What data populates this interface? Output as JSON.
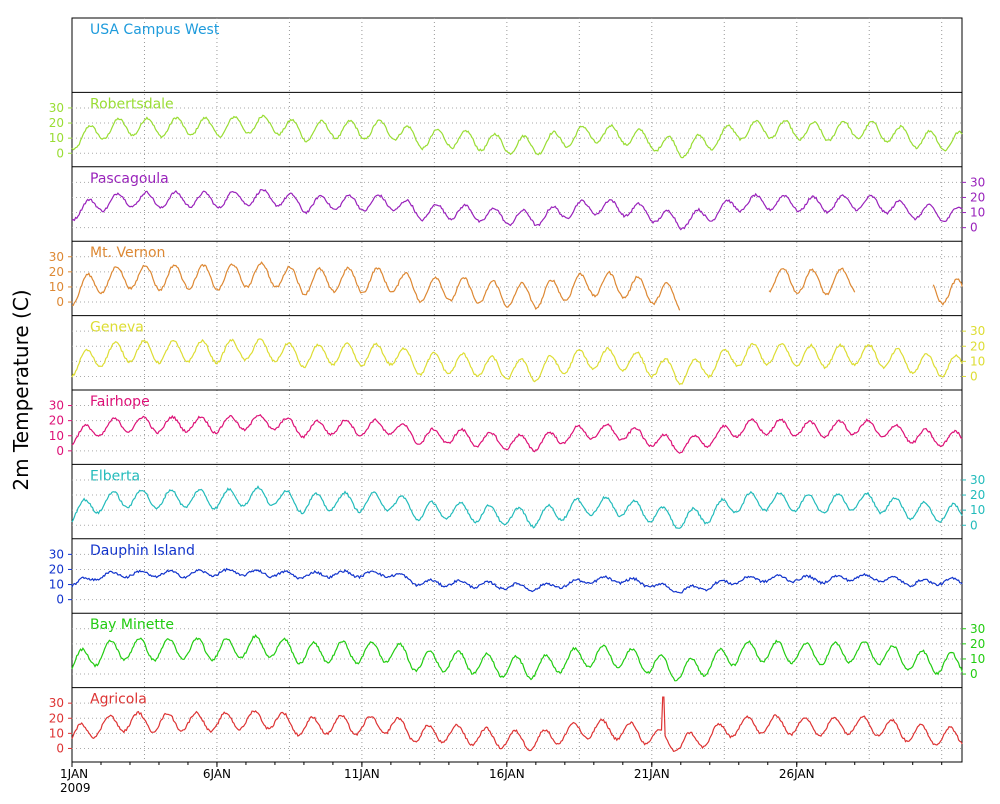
{
  "chart_data": {
    "type": "line",
    "ylabel": "2m Temperature (C)",
    "x_start": "1JAN 2009",
    "x_end": "31JAN 2009",
    "xticks": [
      {
        "day": 1,
        "label": "1JAN",
        "sublabel": "2009"
      },
      {
        "day": 6,
        "label": "6JAN",
        "sublabel": ""
      },
      {
        "day": 11,
        "label": "11JAN",
        "sublabel": ""
      },
      {
        "day": 16,
        "label": "16JAN",
        "sublabel": ""
      },
      {
        "day": 21,
        "label": "21JAN",
        "sublabel": ""
      },
      {
        "day": 26,
        "label": "26JAN",
        "sublabel": ""
      }
    ],
    "yticks": [
      0,
      10,
      20,
      30
    ],
    "ytick_labels": [
      "0",
      "10",
      "20",
      "30"
    ],
    "ylim": [
      -5,
      35
    ],
    "grid": true,
    "series": [
      {
        "name": "USA Campus West",
        "color": "#1e9bdc",
        "axis_side": "none",
        "has_data": false,
        "amp": 0,
        "offset": 0,
        "daily_mean": []
      },
      {
        "name": "Robertsdale",
        "color": "#99dd33",
        "axis_side": "left",
        "has_data": true,
        "amp": 6,
        "offset": 0.0,
        "daily_mean": [
          8,
          15,
          18,
          17,
          18,
          17,
          19,
          19,
          14,
          16,
          15,
          16,
          9,
          10,
          8,
          6,
          5,
          10,
          13,
          12,
          8,
          3,
          8,
          15,
          16,
          15,
          14,
          16,
          14,
          10,
          8
        ]
      },
      {
        "name": "Pascagoula",
        "color": "#9922bb",
        "axis_side": "right",
        "has_data": true,
        "amp": 5,
        "offset": 0.3,
        "daily_mean": [
          10,
          16,
          19,
          18,
          19,
          18,
          20,
          20,
          15,
          17,
          16,
          17,
          10,
          11,
          9,
          7,
          6,
          11,
          14,
          13,
          9,
          4,
          9,
          16,
          17,
          16,
          15,
          17,
          15,
          11,
          9
        ]
      },
      {
        "name": "Mt. Vernon",
        "color": "#dd8833",
        "axis_side": "left",
        "has_data": true,
        "amp": 8,
        "offset": 0.7,
        "daily_mean": [
          6,
          14,
          17,
          16,
          17,
          16,
          18,
          18,
          13,
          15,
          14,
          15,
          8,
          9,
          7,
          5,
          4,
          9,
          12,
          11,
          7,
          2,
          7,
          14,
          15,
          14,
          13,
          15,
          13,
          9,
          7
        ],
        "missing_ranges": [
          [
            22,
            25
          ],
          [
            28,
            30.7
          ]
        ]
      },
      {
        "name": "Geneva",
        "color": "#dddd33",
        "axis_side": "right",
        "has_data": true,
        "amp": 7,
        "offset": 1.1,
        "daily_mean": [
          7,
          14,
          17,
          16,
          17,
          16,
          18,
          17,
          13,
          15,
          14,
          15,
          8,
          9,
          7,
          5,
          4,
          9,
          12,
          11,
          7,
          2,
          7,
          14,
          15,
          14,
          13,
          15,
          13,
          9,
          7
        ]
      },
      {
        "name": "Fairhope",
        "color": "#dd1177",
        "axis_side": "left",
        "has_data": true,
        "amp": 5,
        "offset": 1.5,
        "daily_mean": [
          9,
          15,
          18,
          17,
          18,
          17,
          19,
          19,
          14,
          16,
          15,
          16,
          9,
          10,
          8,
          6,
          5,
          10,
          13,
          12,
          8,
          3,
          8,
          15,
          16,
          15,
          14,
          16,
          14,
          10,
          8
        ]
      },
      {
        "name": "Elberta",
        "color": "#22bbbb",
        "axis_side": "right",
        "has_data": true,
        "amp": 6,
        "offset": 1.9,
        "daily_mean": [
          8,
          15,
          18,
          17,
          18,
          17,
          19,
          19,
          14,
          16,
          15,
          16,
          9,
          10,
          8,
          6,
          5,
          10,
          13,
          12,
          8,
          3,
          8,
          15,
          16,
          15,
          14,
          16,
          14,
          10,
          8
        ]
      },
      {
        "name": "Dauphin Island",
        "color": "#1133cc",
        "axis_side": "left",
        "has_data": true,
        "amp": 2,
        "offset": 2.3,
        "daily_mean": [
          10,
          16,
          17,
          17,
          17,
          18,
          18,
          17,
          16,
          17,
          17,
          17,
          11,
          11,
          10,
          9,
          8,
          10,
          13,
          13,
          10,
          6,
          9,
          13,
          14,
          14,
          13,
          15,
          14,
          11,
          12
        ]
      },
      {
        "name": "Bay Minette",
        "color": "#22cc11",
        "axis_side": "right",
        "has_data": true,
        "amp": 7,
        "offset": 2.7,
        "daily_mean": [
          7,
          14,
          17,
          16,
          17,
          16,
          18,
          18,
          13,
          15,
          14,
          15,
          8,
          9,
          7,
          5,
          4,
          9,
          12,
          11,
          7,
          2,
          7,
          14,
          15,
          14,
          13,
          15,
          13,
          9,
          7
        ]
      },
      {
        "name": "Agricola",
        "color": "#dd3333",
        "axis_side": "left",
        "has_data": true,
        "amp": 6,
        "offset": 3.1,
        "daily_mean": [
          8,
          15,
          18,
          17,
          18,
          17,
          19,
          19,
          14,
          16,
          15,
          16,
          9,
          10,
          8,
          6,
          5,
          10,
          13,
          12,
          8,
          3,
          8,
          15,
          16,
          15,
          14,
          16,
          14,
          10,
          8
        ],
        "spike_day": 21.4
      }
    ]
  }
}
